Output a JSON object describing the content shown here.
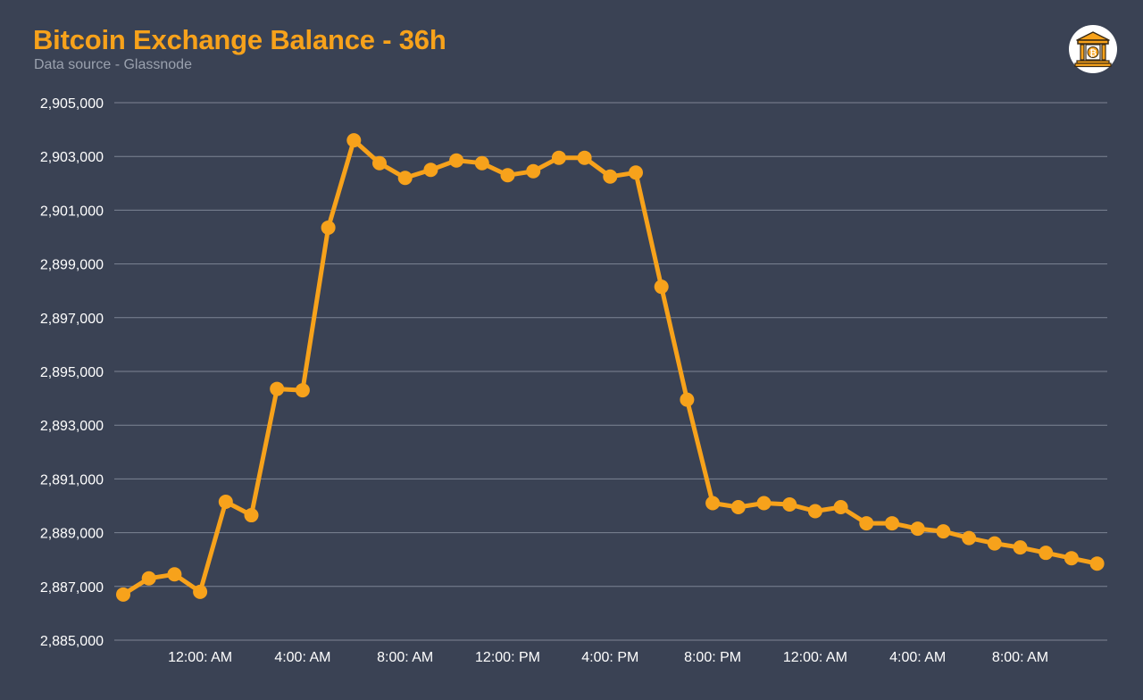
{
  "header": {
    "title": "Bitcoin Exchange Balance - 36h",
    "subtitle": "Data source - Glassnode"
  },
  "logo": {
    "icon": "bank-bitcoin-icon"
  },
  "colors": {
    "background": "#3a4254",
    "accent": "#f7a21b",
    "grid": "#7d8494",
    "axis_text": "#ffffff",
    "subtitle": "#9aa1ae"
  },
  "chart_data": {
    "type": "line",
    "title": "Bitcoin Exchange Balance - 36h",
    "subtitle": "Data source - Glassnode",
    "xlabel": "",
    "ylabel": "",
    "ylim": [
      2885000,
      2905000
    ],
    "yticks": [
      2885000,
      2887000,
      2889000,
      2891000,
      2893000,
      2895000,
      2897000,
      2899000,
      2901000,
      2903000,
      2905000
    ],
    "ytick_labels": [
      "2,885,000",
      "2,887,000",
      "2,889,000",
      "2,891,000",
      "2,893,000",
      "2,895,000",
      "2,897,000",
      "2,899,000",
      "2,901,000",
      "2,903,000",
      "2,905,000"
    ],
    "x_tick_labels": [
      "12:00: AM",
      "4:00: AM",
      "8:00: AM",
      "12:00: PM",
      "4:00: PM",
      "8:00: PM",
      "12:00: AM",
      "4:00: AM",
      "8:00: AM"
    ],
    "x_tick_index": [
      3,
      7,
      11,
      15,
      19,
      23,
      27,
      31,
      35
    ],
    "grid": true,
    "legend": "none",
    "series": [
      {
        "values": [
          2886700,
          2887300,
          2887450,
          2886800,
          2890150,
          2889650,
          2894350,
          2894300,
          2900350,
          2903600,
          2902750,
          2902200,
          2902500,
          2902850,
          2902750,
          2902300,
          2902450,
          2902950,
          2902950,
          2902250,
          2902400,
          2898150,
          2893950,
          2890100,
          2889950,
          2890100,
          2890050,
          2889800,
          2889950,
          2889350,
          2889350,
          2889150,
          2889050,
          2888800,
          2888600,
          2888450,
          2888250,
          2888050,
          2887850
        ]
      }
    ]
  }
}
